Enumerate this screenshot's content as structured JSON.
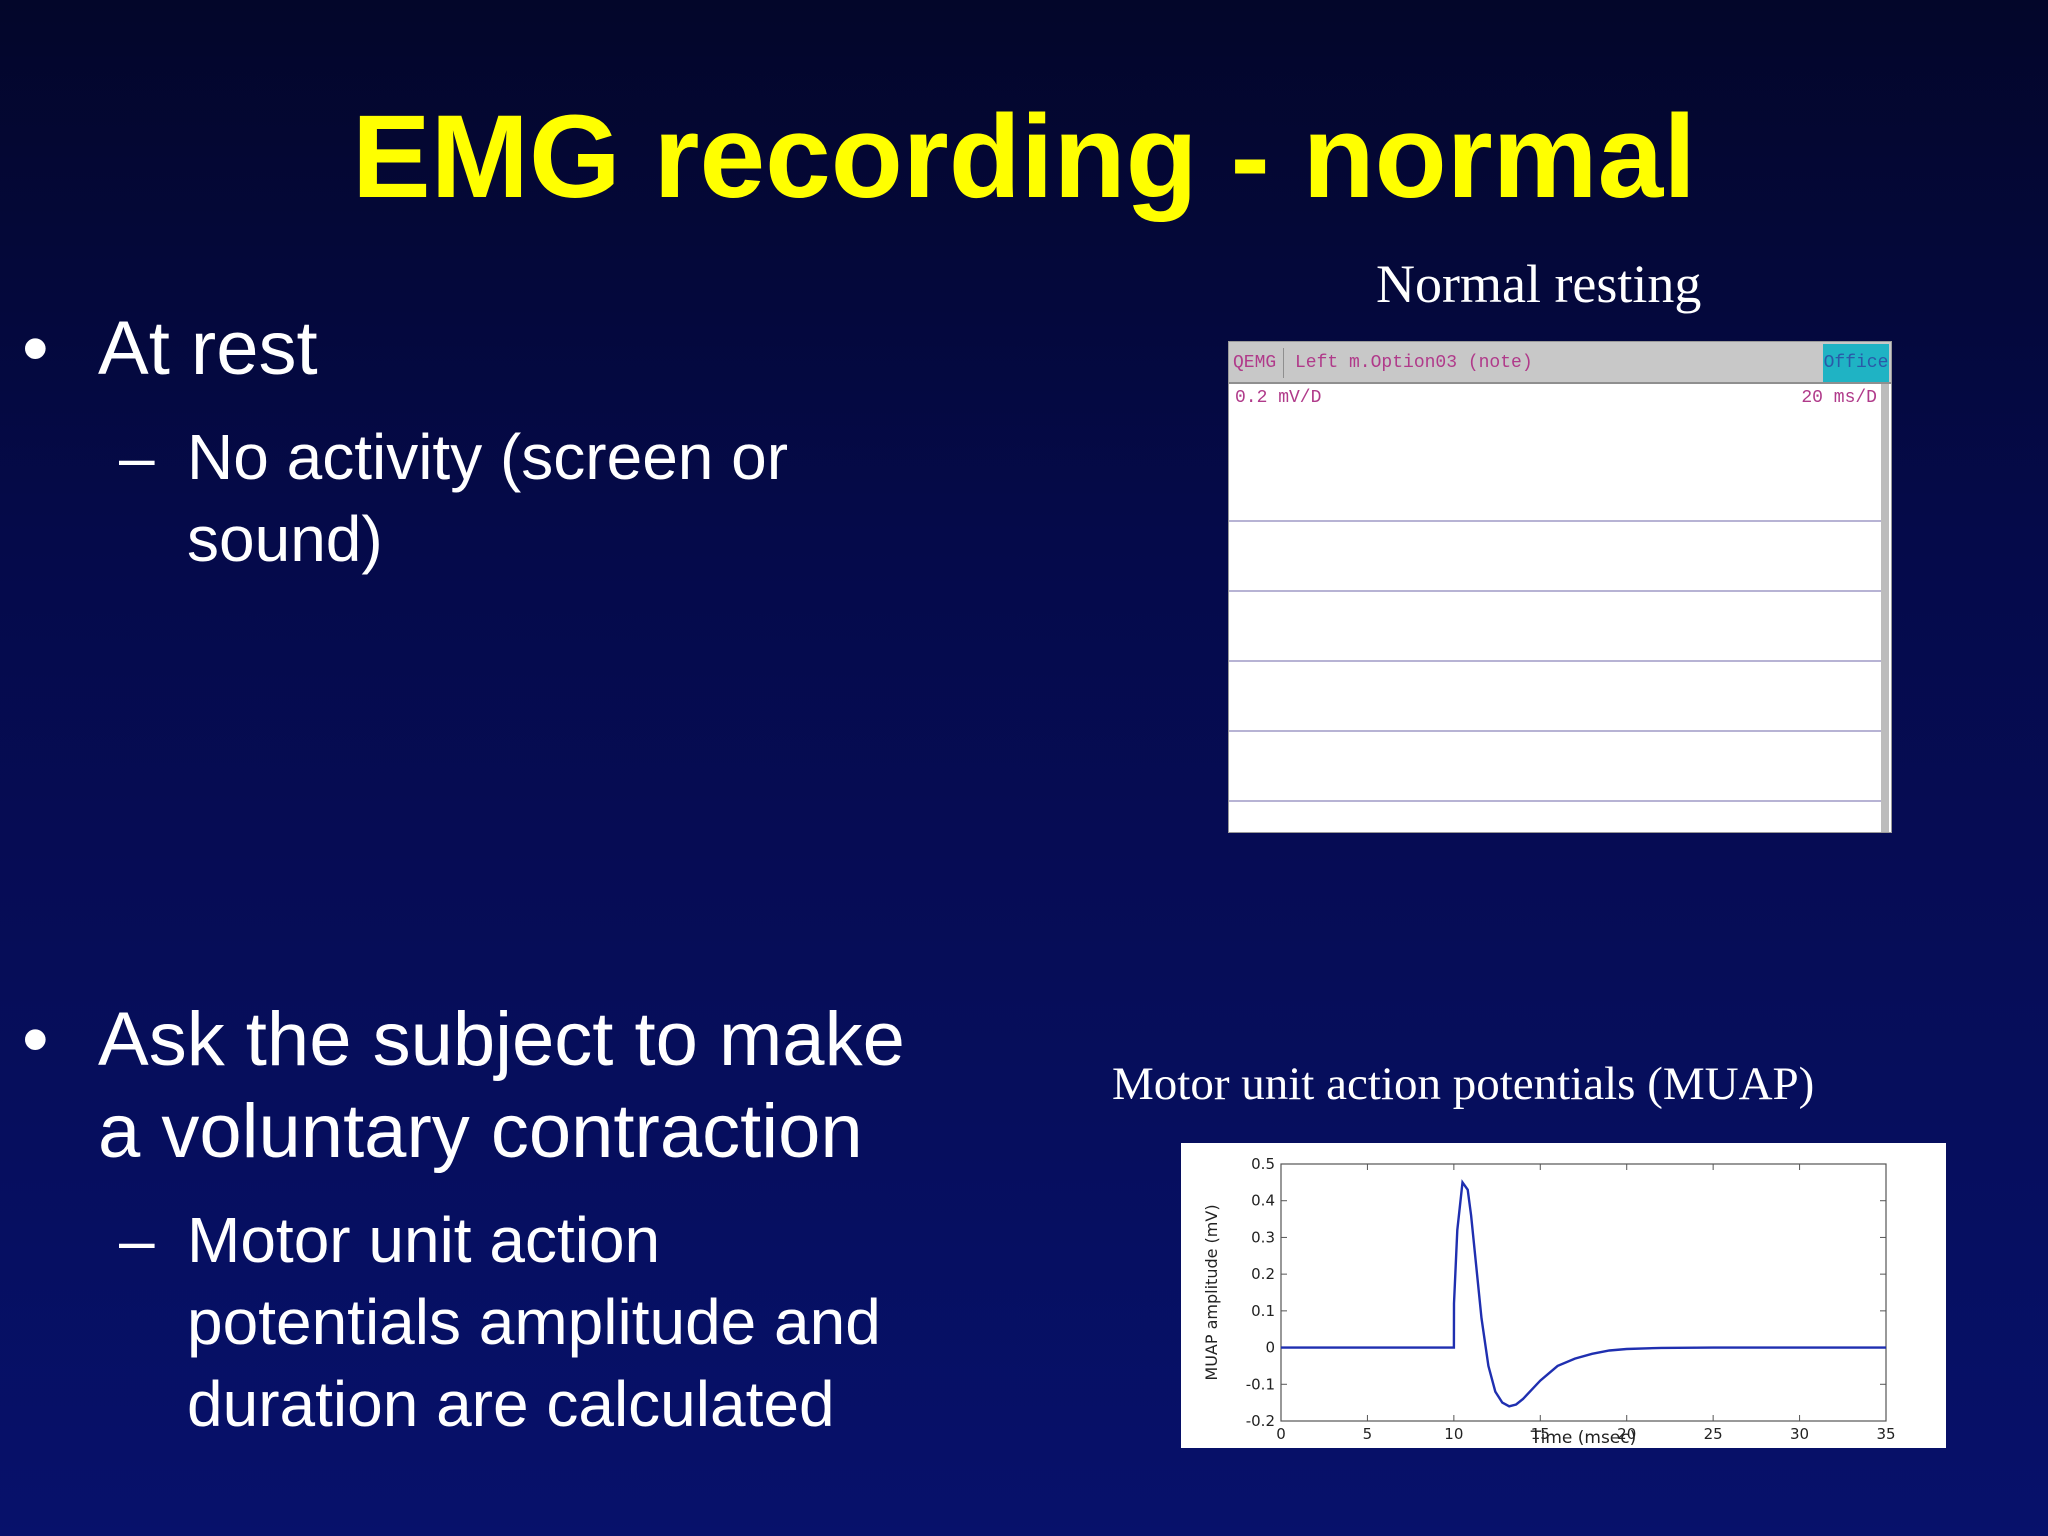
{
  "slide": {
    "title": "EMG recording - normal",
    "bullet_mark": "•",
    "sub_mark": "–",
    "bullets": [
      {
        "text_lines": [
          "At rest"
        ],
        "sub": [
          "No activity (screen or",
          "sound)"
        ]
      },
      {
        "text_lines": [
          "Ask the subject to make",
          "a voluntary contraction"
        ],
        "sub": [
          "Motor unit action",
          "potentials amplitude and",
          "duration are calculated"
        ]
      }
    ]
  },
  "emg_screen": {
    "caption": "Normal resting",
    "header_left": "QEMG",
    "header_mid": "Left m.Option03 (note)",
    "header_right": "Office",
    "scale_left": "0.2 mV/D",
    "scale_right": "20 ms/D"
  },
  "chart_data": {
    "type": "line",
    "title": "Motor unit action potentials (MUAP)",
    "xlabel": "Time (msec)",
    "ylabel": "MUAP amplitude (mV)",
    "xlim": [
      0,
      35
    ],
    "ylim": [
      -0.2,
      0.5
    ],
    "xticks": [
      0,
      5,
      10,
      15,
      20,
      25,
      30,
      35
    ],
    "yticks": [
      -0.2,
      -0.1,
      0,
      0.1,
      0.2,
      0.3,
      0.4,
      0.5
    ],
    "xtick_labels": [
      "0",
      "5",
      "10",
      "15",
      "20",
      "25",
      "30",
      "35"
    ],
    "ytick_labels": [
      "-0.2",
      "-0.1",
      "0",
      "0.1",
      "0.2",
      "0.3",
      "0.4",
      "0.5"
    ],
    "grid": false,
    "line_color": "#1f2fb0",
    "series": [
      {
        "x": [
          0,
          10,
          10.01,
          10.2,
          10.5,
          10.8,
          11.0,
          11.3,
          11.6,
          12.0,
          12.4,
          12.8,
          13.2,
          13.6,
          14.0,
          14.5,
          15.0,
          15.5,
          16.0,
          17.0,
          18.0,
          19.0,
          20.0,
          22.0,
          25.0,
          30.0,
          35.0
        ],
        "y": [
          0,
          0,
          0.12,
          0.32,
          0.45,
          0.43,
          0.36,
          0.22,
          0.08,
          -0.05,
          -0.12,
          -0.15,
          -0.16,
          -0.155,
          -0.14,
          -0.115,
          -0.09,
          -0.07,
          -0.05,
          -0.03,
          -0.017,
          -0.008,
          -0.004,
          -0.001,
          0,
          0,
          0
        ]
      }
    ]
  }
}
